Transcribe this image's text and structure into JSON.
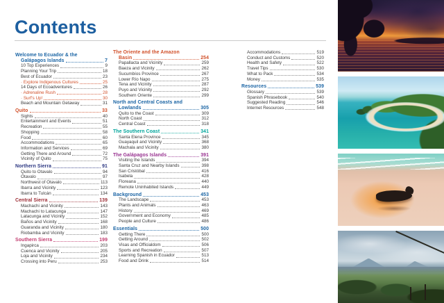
{
  "page": {
    "title": "Contents"
  },
  "colors": {
    "title": "#1d5fa0",
    "blue": "#1a64a4",
    "orange": "#d1502a",
    "navy": "#2a3580",
    "darkred": "#9c2c35",
    "magenta": "#c13a6e",
    "teal": "#00a59b",
    "purple": "#97308f",
    "entry": "#3b3b3b",
    "rule": "#c9c9c9"
  },
  "toc": {
    "columns": [
      {
        "sections": [
          {
            "title_lines": [
              "Welcome to Ecuador & the",
              "Galápagos Islands"
            ],
            "page": "7",
            "color": "blue",
            "entries": [
              {
                "label": "10 Top Experiences",
                "page": "9"
              },
              {
                "label": "Planning Your Trip",
                "page": "18"
              },
              {
                "label": "Best of Ecuador",
                "page": "23"
              },
              {
                "label": "Explore Indigenous Cultures",
                "page": "25",
                "accent": true,
                "bullet": true
              },
              {
                "label": "14 Days of Ecoadventures",
                "page": "26"
              },
              {
                "label": "Adrenaline Rush",
                "page": "28",
                "accent": true,
                "bullet": true
              },
              {
                "label": "Surf's Up!",
                "page": "30",
                "accent": true,
                "bullet": true
              },
              {
                "label": "Beach and Mountain Getaway",
                "page": "31"
              }
            ]
          },
          {
            "title_lines": [
              "Quito"
            ],
            "page": "33",
            "color": "orange",
            "entries": [
              {
                "label": "Sights",
                "page": "40"
              },
              {
                "label": "Entertainment and Events",
                "page": "51"
              },
              {
                "label": "Recreation",
                "page": "55"
              },
              {
                "label": "Shopping",
                "page": "58"
              },
              {
                "label": "Food",
                "page": "60"
              },
              {
                "label": "Accommodations",
                "page": "65"
              },
              {
                "label": "Information and Services",
                "page": "69"
              },
              {
                "label": "Getting There and Around",
                "page": "72"
              },
              {
                "label": "Vicinity of Quito",
                "page": "75"
              }
            ]
          },
          {
            "title_lines": [
              "Northern Sierra"
            ],
            "page": "91",
            "color": "navy",
            "entries": [
              {
                "label": "Quito to Otavalo",
                "page": "94"
              },
              {
                "label": "Otavalo",
                "page": "97"
              },
              {
                "label": "Northwest of Otavalo",
                "page": "113"
              },
              {
                "label": "Ibarra and Vicinity",
                "page": "123"
              },
              {
                "label": "Ibarra to Tulcán",
                "page": "134"
              }
            ]
          },
          {
            "title_lines": [
              "Central Sierra"
            ],
            "page": "139",
            "color": "darkred",
            "entries": [
              {
                "label": "Machachi and Vicinity",
                "page": "143"
              },
              {
                "label": "Machachi to Latacunga",
                "page": "147"
              },
              {
                "label": "Latacunga and Vicinity",
                "page": "152"
              },
              {
                "label": "Baños and Vicinity",
                "page": "168"
              },
              {
                "label": "Guaranda and Vicinity",
                "page": "180"
              },
              {
                "label": "Riobamba and Vicinity",
                "page": "183"
              }
            ]
          },
          {
            "title_lines": [
              "Southern Sierra"
            ],
            "page": "199",
            "color": "magenta",
            "entries": [
              {
                "label": "Ingapirca",
                "page": "203"
              },
              {
                "label": "Cuenca and Vicinity",
                "page": "205"
              },
              {
                "label": "Loja and Vicinity",
                "page": "234"
              },
              {
                "label": "Crossing into Peru",
                "page": "253"
              }
            ]
          }
        ]
      },
      {
        "sections": [
          {
            "title_lines": [
              "The Oriente and the Amazon",
              "Basin"
            ],
            "page": "254",
            "color": "orange",
            "entries": [
              {
                "label": "Papallacta and Vicinity",
                "page": "259"
              },
              {
                "label": "Baeza and Vicinity",
                "page": "262"
              },
              {
                "label": "Sucumbíos Province",
                "page": "267"
              },
              {
                "label": "Lower Río Napo",
                "page": "275"
              },
              {
                "label": "Tena and Vicinity",
                "page": "287"
              },
              {
                "label": "Puyo and Vicinity",
                "page": "292"
              },
              {
                "label": "Southern Oriente",
                "page": "299"
              }
            ]
          },
          {
            "title_lines": [
              "North and Central Coasts and",
              "Lowlands"
            ],
            "page": "305",
            "color": "blue",
            "entries": [
              {
                "label": "Quito to the Coast",
                "page": "309"
              },
              {
                "label": "North Coast",
                "page": "312"
              },
              {
                "label": "Central Coast",
                "page": "318"
              }
            ]
          },
          {
            "title_lines": [
              "The Southern Coast"
            ],
            "page": "341",
            "color": "teal",
            "entries": [
              {
                "label": "Santa Elena Province",
                "page": "345"
              },
              {
                "label": "Guayaquil and Vicinity",
                "page": "368"
              },
              {
                "label": "Machala and Vicinity",
                "page": "380"
              }
            ]
          },
          {
            "title_lines": [
              "The Galápagos Islands"
            ],
            "page": "391",
            "color": "purple",
            "entries": [
              {
                "label": "Visiting the Islands",
                "page": "394"
              },
              {
                "label": "Santa Cruz and Nearby Islands",
                "page": "398"
              },
              {
                "label": "San Cristóbal",
                "page": "416"
              },
              {
                "label": "Isabela",
                "page": "428"
              },
              {
                "label": "Floreana",
                "page": "440"
              },
              {
                "label": "Remote Uninhabited Islands",
                "page": "449"
              }
            ]
          },
          {
            "title_lines": [
              "Background"
            ],
            "page": "453",
            "color": "blue",
            "entries": [
              {
                "label": "The Landscape",
                "page": "453"
              },
              {
                "label": "Plants and Animals",
                "page": "463"
              },
              {
                "label": "History",
                "page": "469"
              },
              {
                "label": "Government and Economy",
                "page": "485"
              },
              {
                "label": "People and Culture",
                "page": "486"
              }
            ]
          },
          {
            "title_lines": [
              "Essentials"
            ],
            "page": "500",
            "color": "blue",
            "entries": [
              {
                "label": "Getting There",
                "page": "500"
              },
              {
                "label": "Getting Around",
                "page": "502"
              },
              {
                "label": "Visas and Officialdom",
                "page": "506"
              },
              {
                "label": "Sports and Recreation",
                "page": "507"
              },
              {
                "label": "Learning Spanish in Ecuador",
                "page": "513"
              },
              {
                "label": "Food and Drink",
                "page": "514"
              }
            ]
          }
        ]
      },
      {
        "sections": [
          {
            "title_lines": null,
            "page": null,
            "color": "entry",
            "entries": [
              {
                "label": "Accommodations",
                "page": "519"
              },
              {
                "label": "Conduct and Customs",
                "page": "520"
              },
              {
                "label": "Health and Safety",
                "page": "522"
              },
              {
                "label": "Travel Tips",
                "page": "530"
              },
              {
                "label": "What to Pack",
                "page": "534"
              },
              {
                "label": "Money",
                "page": "535"
              }
            ]
          },
          {
            "title_lines": [
              "Resources"
            ],
            "page": "539",
            "color": "blue",
            "entries": [
              {
                "label": "Glossary",
                "page": "539"
              },
              {
                "label": "Spanish Phrasebook",
                "page": "540"
              },
              {
                "label": "Suggested Reading",
                "page": "546"
              },
              {
                "label": "Internet Resources",
                "page": "548"
              }
            ]
          }
        ]
      }
    ]
  },
  "photos": [
    {
      "name": "amazon-river-sunset"
    },
    {
      "name": "turquoise-beach-cove"
    },
    {
      "name": "sea-lion-on-beach"
    },
    {
      "name": "andes-volcano-landscape"
    }
  ]
}
